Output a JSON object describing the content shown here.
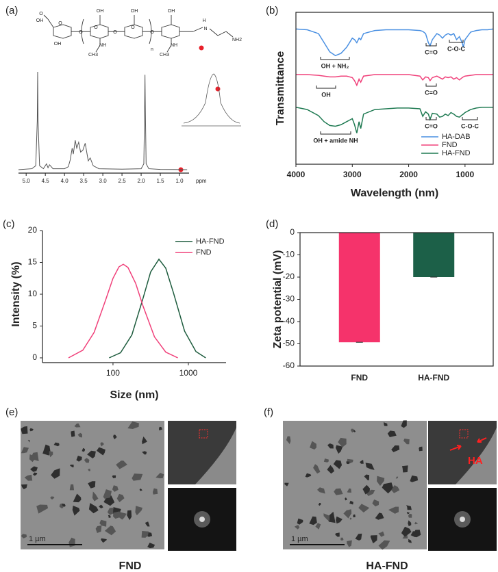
{
  "panels": {
    "a": "(a)",
    "b": "(b)",
    "c": "(c)",
    "d": "(d)",
    "e": "(e)",
    "f": "(f)"
  },
  "structure": {
    "labels": [
      "O",
      "OH",
      "O",
      "O",
      "OH",
      "O",
      "OH",
      "O",
      "O",
      "OH",
      "O",
      "OH",
      "NH",
      "NH",
      "CH3",
      "CH3",
      "n",
      "H",
      "N",
      "NH2"
    ]
  },
  "chart_data": [
    {
      "type": "line",
      "xlabel": "ppm",
      "xlim": [
        5.2,
        0.75
      ],
      "ylim": [
        0,
        100
      ],
      "xticks": [
        {
          "value": 5,
          "label": "5.0"
        },
        {
          "value": 4.5,
          "label": "4.5"
        },
        {
          "value": 4,
          "label": "4.0"
        },
        {
          "value": 3.5,
          "label": "3.5"
        },
        {
          "value": 3,
          "label": "3.0"
        },
        {
          "value": 2.5,
          "label": "2.5"
        },
        {
          "value": 2,
          "label": "2.0"
        },
        {
          "value": 1.5,
          "label": "1.5"
        },
        {
          "value": 1,
          "label": "1.0"
        }
      ],
      "x": [
        5.2,
        4.85,
        4.75,
        4.71,
        4.7,
        4.69,
        4.65,
        4.55,
        4.47,
        4.43,
        4.39,
        4.3,
        4.0,
        3.9,
        3.85,
        3.8,
        3.77,
        3.72,
        3.68,
        3.63,
        3.58,
        3.52,
        3.46,
        3.42,
        3.38,
        3.33,
        3.25,
        3.1,
        2.5,
        2.0,
        1.93,
        1.91,
        1.9,
        1.89,
        1.87,
        1.8,
        1.5,
        0.8
      ],
      "series": [
        {
          "color": "#555555",
          "values": [
            0,
            1,
            4,
            50,
            100,
            50,
            4,
            1,
            6,
            2,
            5,
            1,
            1,
            3,
            10,
            22,
            16,
            30,
            22,
            28,
            18,
            20,
            27,
            18,
            9,
            12,
            4,
            1,
            0.5,
            1,
            6,
            60,
            97,
            60,
            6,
            1,
            0.3,
            0
          ]
        }
      ]
    },
    {
      "type": "line",
      "ylabel": "Transmittance",
      "xlabel": "Wavelength (nm)",
      "xlim": [
        4000,
        500
      ],
      "ylim": [
        0,
        100
      ],
      "xticks": [
        4000,
        3000,
        2000,
        1000
      ],
      "legend": "lower right",
      "annotations": [
        "OH + NH₂",
        "C=O",
        "C-O-C",
        "OH",
        "C=O",
        "OH + amide NH",
        "C=O",
        "C-O-C"
      ],
      "x": [
        4000,
        3800,
        3600,
        3500,
        3400,
        3300,
        3200,
        3100,
        3000,
        2960,
        2920,
        2880,
        2850,
        2800,
        2600,
        2400,
        2200,
        2000,
        1800,
        1750,
        1700,
        1650,
        1620,
        1580,
        1500,
        1450,
        1400,
        1350,
        1300,
        1250,
        1200,
        1150,
        1100,
        1050,
        1030,
        1000,
        900,
        800,
        700,
        600,
        500
      ],
      "series": [
        {
          "name": "HA-DAB",
          "color": "#4a90e2",
          "values": [
            89,
            88.5,
            86,
            80,
            74,
            71.5,
            73,
            77,
            83,
            82,
            80,
            83,
            82,
            86,
            88,
            88.5,
            88.5,
            88.5,
            88,
            87.5,
            86,
            80,
            78,
            82,
            86,
            85,
            83,
            85,
            86,
            85,
            86,
            82,
            84,
            80,
            77,
            82,
            87,
            88,
            88.5,
            88.5,
            89
          ]
        },
        {
          "name": "FND",
          "color": "#f0407a",
          "values": [
            59,
            59,
            58.5,
            58,
            57.5,
            57.5,
            58,
            58,
            57,
            55,
            52,
            56,
            54,
            58,
            59,
            59,
            59,
            59,
            58,
            55.5,
            57.5,
            57,
            55,
            57,
            58,
            57,
            56,
            57.5,
            57,
            57.5,
            56,
            57,
            55.5,
            57,
            57.5,
            58,
            58.5,
            59,
            59,
            59,
            59
          ]
        },
        {
          "name": "HA-FND",
          "color": "#1f7a52",
          "values": [
            37.5,
            36,
            32,
            28,
            25.5,
            25,
            26,
            28,
            30,
            26,
            20.5,
            28,
            23.5,
            33,
            36,
            36.5,
            37,
            37,
            36.5,
            31.5,
            34.5,
            33,
            29.5,
            33.5,
            33,
            31,
            31.5,
            33,
            32,
            34,
            33,
            31.5,
            31,
            32.5,
            33,
            34,
            36,
            37,
            37.5,
            37.5,
            37.5
          ]
        }
      ]
    },
    {
      "type": "line",
      "ylabel": "Intensity (%)",
      "xlabel": "Size (nm)",
      "xscale": "log",
      "xlim": [
        11.6,
        3162
      ],
      "ylim": [
        0,
        20
      ],
      "xticks": [
        100,
        1000
      ],
      "yticks": [
        0,
        5,
        10,
        15,
        20
      ],
      "legend": "upper right",
      "series": [
        {
          "name": "HA-FND",
          "color": "#1e5c3e",
          "x": [
            89,
            126,
            178,
            251,
            316,
            407,
            501,
            631,
            891,
            1259,
            1698
          ],
          "values": [
            0,
            0.8,
            3.6,
            9.4,
            13.5,
            15.5,
            14.1,
            10.3,
            4.2,
            1,
            0
          ]
        },
        {
          "name": "FND",
          "color": "#f0407a",
          "x": [
            25.7,
            39.8,
            56.2,
            79.4,
            100,
            120,
            137,
            158,
            200,
            251,
            355,
            501,
            724
          ],
          "values": [
            0,
            1.2,
            4,
            9,
            12.5,
            14.3,
            14.7,
            14.2,
            11.7,
            8.1,
            3.3,
            0.9,
            0
          ]
        }
      ]
    },
    {
      "type": "bar",
      "ylabel": "Zeta potential (mV)",
      "ylim": [
        -60,
        0
      ],
      "yticks": [
        0,
        -10,
        -20,
        -30,
        -40,
        -50,
        -60
      ],
      "categories": [
        "FND",
        "HA-FND"
      ],
      "values": [
        -49.3,
        -20
      ],
      "colors": [
        "#f5336b",
        "#1c6048"
      ]
    }
  ],
  "images": [
    {
      "caption": "FND",
      "scale": "1 µm"
    },
    {
      "caption": "HA-FND",
      "scale": "1 µm",
      "annotation": "HA"
    }
  ]
}
